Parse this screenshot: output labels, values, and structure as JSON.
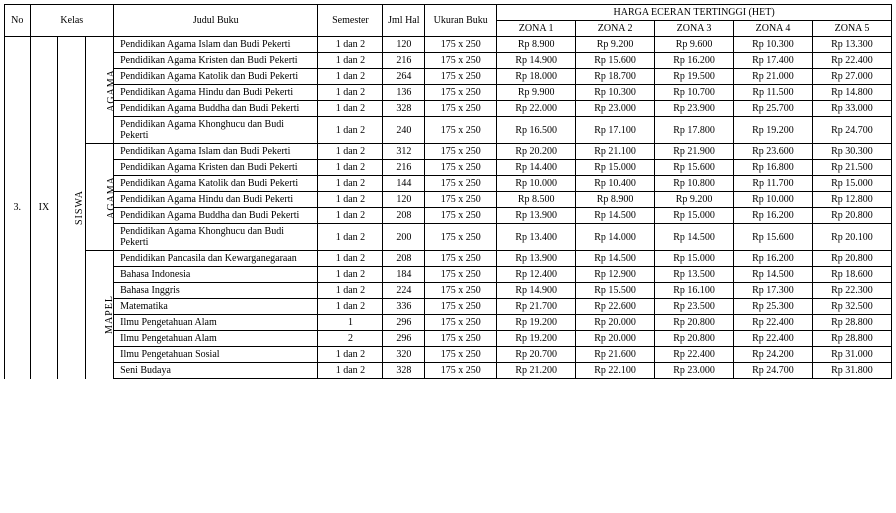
{
  "header": {
    "no": "No",
    "kelas": "Kelas",
    "judul": "Judul Buku",
    "semester": "Semester",
    "jml_hal": "Jml Hal",
    "ukuran": "Ukuran Buku",
    "het_group": "HARGA ECERAN TERTINGGI (HET)",
    "zona1": "ZONA 1",
    "zona2": "ZONA 2",
    "zona3": "ZONA 3",
    "zona4": "ZONA 4",
    "zona5": "ZONA 5"
  },
  "labels": {
    "no": "3.",
    "kelas": "IX",
    "siswa": "SISWA",
    "agama1": "AGAMA",
    "agama2": "AGAMA",
    "mapel": "MAPEL"
  },
  "sections": [
    {
      "title": "AGAMA_TOP",
      "rows": [
        {
          "judul": "Pendidikan Agama Islam dan Budi Pekerti",
          "sem": "1 dan 2",
          "hal": "120",
          "uk": "175 x 250",
          "z1": "Rp 8.900",
          "z2": "Rp 9.200",
          "z3": "Rp 9.600",
          "z4": "Rp 10.300",
          "z5": "Rp 13.300"
        },
        {
          "judul": "Pendidikan Agama Kristen dan Budi Pekerti",
          "sem": "1 dan 2",
          "hal": "216",
          "uk": "175 x 250",
          "z1": "Rp 14.900",
          "z2": "Rp 15.600",
          "z3": "Rp 16.200",
          "z4": "Rp 17.400",
          "z5": "Rp 22.400"
        },
        {
          "judul": "Pendidikan Agama Katolik dan Budi Pekerti",
          "sem": "1 dan 2",
          "hal": "264",
          "uk": "175 x 250",
          "z1": "Rp 18.000",
          "z2": "Rp 18.700",
          "z3": "Rp 19.500",
          "z4": "Rp 21.000",
          "z5": "Rp 27.000"
        },
        {
          "judul": "Pendidikan Agama Hindu dan Budi Pekerti",
          "sem": "1 dan 2",
          "hal": "136",
          "uk": "175 x 250",
          "z1": "Rp 9.900",
          "z2": "Rp 10.300",
          "z3": "Rp 10.700",
          "z4": "Rp 11.500",
          "z5": "Rp 14.800"
        },
        {
          "judul": "Pendidikan Agama Buddha dan Budi Pekerti",
          "sem": "1 dan 2",
          "hal": "328",
          "uk": "175 x 250",
          "z1": "Rp 22.000",
          "z2": "Rp 23.000",
          "z3": "Rp 23.900",
          "z4": "Rp 25.700",
          "z5": "Rp 33.000"
        },
        {
          "judul": "Pendidikan Agama Khonghucu dan Budi Pekerti",
          "sem": "1 dan 2",
          "hal": "240",
          "uk": "175 x 250",
          "z1": "Rp 16.500",
          "z2": "Rp 17.100",
          "z3": "Rp 17.800",
          "z4": "Rp 19.200",
          "z5": "Rp 24.700"
        }
      ]
    },
    {
      "title": "AGAMA_BOTTOM",
      "rows": [
        {
          "judul": "Pendidikan Agama Islam dan Budi Pekerti",
          "sem": "1 dan 2",
          "hal": "312",
          "uk": "175 x 250",
          "z1": "Rp 20.200",
          "z2": "Rp 21.100",
          "z3": "Rp 21.900",
          "z4": "Rp 23.600",
          "z5": "Rp 30.300"
        },
        {
          "judul": "Pendidikan Agama Kristen dan Budi Pekerti",
          "sem": "1 dan 2",
          "hal": "216",
          "uk": "175 x 250",
          "z1": "Rp 14.400",
          "z2": "Rp 15.000",
          "z3": "Rp 15.600",
          "z4": "Rp 16.800",
          "z5": "Rp 21.500"
        },
        {
          "judul": "Pendidikan Agama Katolik dan Budi Pekerti",
          "sem": "1 dan 2",
          "hal": "144",
          "uk": "175 x 250",
          "z1": "Rp 10.000",
          "z2": "Rp 10.400",
          "z3": "Rp 10.800",
          "z4": "Rp 11.700",
          "z5": "Rp 15.000"
        },
        {
          "judul": "Pendidikan Agama Hindu dan Budi Pekerti",
          "sem": "1 dan 2",
          "hal": "120",
          "uk": "175 x 250",
          "z1": "Rp 8.500",
          "z2": "Rp 8.900",
          "z3": "Rp 9.200",
          "z4": "Rp 10.000",
          "z5": "Rp 12.800"
        },
        {
          "judul": "Pendidikan Agama Buddha dan Budi Pekerti",
          "sem": "1 dan 2",
          "hal": "208",
          "uk": "175 x 250",
          "z1": "Rp 13.900",
          "z2": "Rp 14.500",
          "z3": "Rp 15.000",
          "z4": "Rp 16.200",
          "z5": "Rp 20.800"
        },
        {
          "judul": "Pendidikan Agama Khonghucu dan Budi Pekerti",
          "sem": "1 dan 2",
          "hal": "200",
          "uk": "175 x 250",
          "z1": "Rp 13.400",
          "z2": "Rp 14.000",
          "z3": "Rp 14.500",
          "z4": "Rp 15.600",
          "z5": "Rp 20.100"
        }
      ]
    },
    {
      "title": "MAPEL",
      "rows": [
        {
          "judul": "Pendidikan Pancasila dan Kewarganegaraan",
          "sem": "1 dan 2",
          "hal": "208",
          "uk": "175 x 250",
          "z1": "Rp 13.900",
          "z2": "Rp 14.500",
          "z3": "Rp 15.000",
          "z4": "Rp 16.200",
          "z5": "Rp 20.800"
        },
        {
          "judul": "Bahasa Indonesia",
          "sem": "1 dan 2",
          "hal": "184",
          "uk": "175 x 250",
          "z1": "Rp 12.400",
          "z2": "Rp 12.900",
          "z3": "Rp 13.500",
          "z4": "Rp 14.500",
          "z5": "Rp 18.600",
          "tight": true
        },
        {
          "judul": "Bahasa Inggris",
          "sem": "1 dan 2",
          "hal": "224",
          "uk": "175 x 250",
          "z1": "Rp 14.900",
          "z2": "Rp 15.500",
          "z3": "Rp 16.100",
          "z4": "Rp 17.300",
          "z5": "Rp 22.300",
          "tight": true
        },
        {
          "judul": "Matematika",
          "sem": "1 dan 2",
          "hal": "336",
          "uk": "175 x 250",
          "z1": "Rp 21.700",
          "z2": "Rp 22.600",
          "z3": "Rp 23.500",
          "z4": "Rp 25.300",
          "z5": "Rp 32.500",
          "tight": true
        },
        {
          "judul": "Ilmu Pengetahuan Alam",
          "sem": "1",
          "hal": "296",
          "uk": "175 x 250",
          "z1": "Rp 19.200",
          "z2": "Rp 20.000",
          "z3": "Rp 20.800",
          "z4": "Rp 22.400",
          "z5": "Rp 28.800",
          "tight": true
        },
        {
          "judul": "Ilmu Pengetahuan Alam",
          "sem": "2",
          "hal": "296",
          "uk": "175 x 250",
          "z1": "Rp 19.200",
          "z2": "Rp 20.000",
          "z3": "Rp 20.800",
          "z4": "Rp 22.400",
          "z5": "Rp 28.800",
          "tight": true
        },
        {
          "judul": "Ilmu Pengetahuan Sosial",
          "sem": "1 dan 2",
          "hal": "320",
          "uk": "175 x 250",
          "z1": "Rp 20.700",
          "z2": "Rp 21.600",
          "z3": "Rp 22.400",
          "z4": "Rp 24.200",
          "z5": "Rp 31.000",
          "tight": true
        },
        {
          "judul": "Seni Budaya",
          "sem": "1 dan 2",
          "hal": "328",
          "uk": "175 x 250",
          "z1": "Rp 21.200",
          "z2": "Rp 22.100",
          "z3": "Rp 23.000",
          "z4": "Rp 24.700",
          "z5": "Rp 31.800",
          "tight": true
        }
      ]
    }
  ],
  "col_widths": {
    "no": 22,
    "kelas": 24,
    "siswa": 24,
    "group": 24,
    "judul": 176,
    "sem": 56,
    "hal": 36,
    "uk": 62,
    "zona": 68
  }
}
